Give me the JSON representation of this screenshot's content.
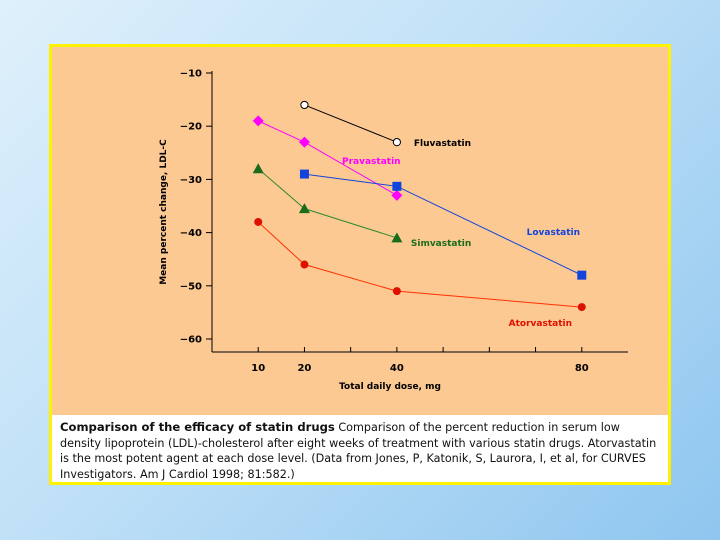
{
  "chart_data": {
    "type": "line",
    "ylabel": "Mean percent change, LDL-C",
    "xlabel": "Total daily dose, mg",
    "ylim": [
      -60,
      -10
    ],
    "yticks": [
      -10,
      -20,
      -30,
      -40,
      -50,
      -60
    ],
    "xlim": [
      0,
      90
    ],
    "xticks_labeled": [
      10,
      20,
      40,
      80
    ],
    "xticks_minor": [
      30,
      50,
      60,
      70
    ],
    "grid": false,
    "series": [
      {
        "name": "Fluvastatin",
        "color": "#000000",
        "line_color": "#000000",
        "marker": "circle-open",
        "x": [
          20,
          40
        ],
        "y": [
          -16,
          -23
        ]
      },
      {
        "name": "Pravastatin",
        "color": "#ff00ff",
        "line_color": "#ff00ff",
        "marker": "diamond",
        "x": [
          10,
          20,
          40
        ],
        "y": [
          -19,
          -23,
          -33
        ]
      },
      {
        "name": "Lovastatin",
        "color": "#1144dd",
        "line_color": "#1144dd",
        "marker": "square",
        "x": [
          20,
          40,
          80
        ],
        "y": [
          -29,
          -31.3,
          -48
        ]
      },
      {
        "name": "Simvastatin",
        "color": "#1a6b1a",
        "line_color": "#2f8a2f",
        "marker": "triangle",
        "x": [
          10,
          20,
          40
        ],
        "y": [
          -28,
          -35.5,
          -41
        ]
      },
      {
        "name": "Atorvastatin",
        "color": "#dd1100",
        "line_color": "#ff3300",
        "marker": "circle",
        "x": [
          10,
          20,
          40,
          80
        ],
        "y": [
          -38,
          -46,
          -51,
          -54
        ]
      }
    ]
  },
  "caption": {
    "title": "Comparison of the efficacy of statin drugs",
    "text": "Comparison of the percent reduction in serum low density lipoprotein (LDL)-cholesterol after eight weeks of treatment with various statin drugs. Atorvastatin is the most potent agent at each dose level. (Data from Jones, P, Katonik, S, Laurora, I, et al, for CURVES Investigators. Am J Cardiol 1998; 81:582.)"
  },
  "colors": {
    "page_background": "#bfe0f7",
    "frame_border": "#fff200",
    "chart_background": "#fdc993"
  }
}
